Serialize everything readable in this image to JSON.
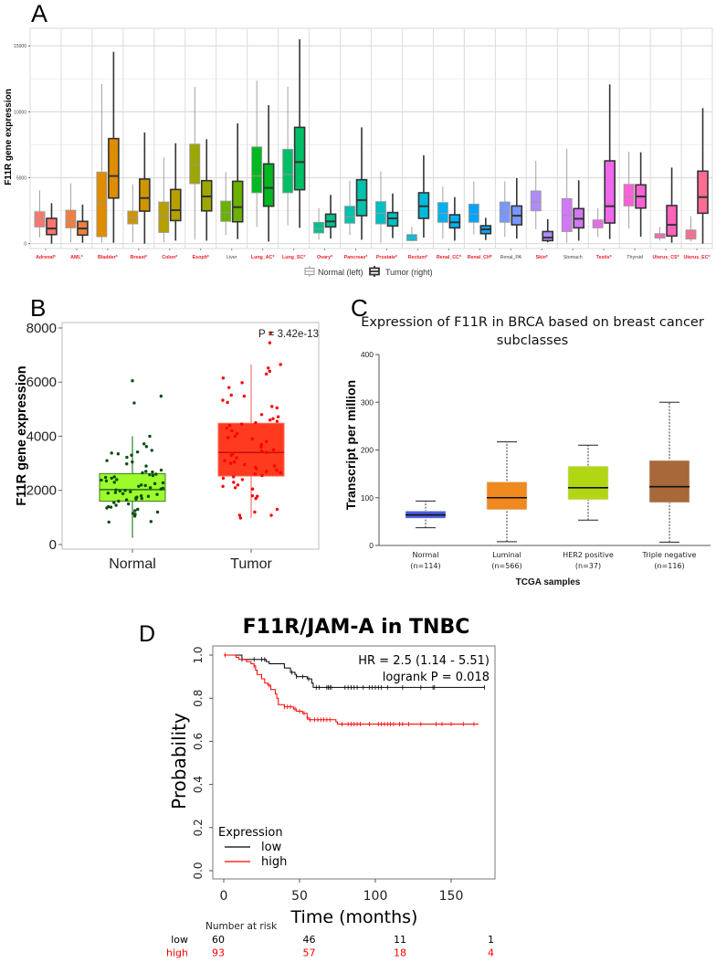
{
  "chart_data": [
    {
      "panel": "A",
      "type": "box",
      "ylabel": "F11R gene expression",
      "ylim": [
        0,
        15500
      ],
      "yticks": [
        "0",
        "5000",
        "10000",
        "15000"
      ],
      "grid": true,
      "legend": {
        "placement": "bottom",
        "normal": "Normal (left)",
        "tumor": "Tumor (right)"
      },
      "significant_color": "#e8202a",
      "tissues": [
        {
          "label": "Adrenal*",
          "sig": true,
          "color": "#F8766D",
          "normal": [
            0.46,
            1.27,
            1.85,
            2.42,
            4.04
          ],
          "tumor": [
            0,
            0.69,
            1.15,
            1.92,
            3.07
          ]
        },
        {
          "label": "AML*",
          "sig": true,
          "color": "#EE7F3E",
          "normal": [
            0.1,
            1.2,
            1.73,
            2.54,
            4.57
          ],
          "tumor": [
            0.07,
            0.65,
            1.15,
            1.69,
            2.96
          ]
        },
        {
          "label": "Bladder*",
          "sig": true,
          "color": "#DE8C00",
          "normal": [
            0.07,
            0.53,
            3.07,
            5.43,
            12.1
          ],
          "tumor": [
            0.07,
            3.46,
            5.13,
            7.97,
            14.55
          ]
        },
        {
          "label": "Breast*",
          "sig": true,
          "color": "#CD9600",
          "normal": [
            0.1,
            1.5,
            1.94,
            2.47,
            4.5
          ],
          "tumor": [
            0,
            2.47,
            3.46,
            4.9,
            8.43
          ]
        },
        {
          "label": "Colon*",
          "sig": true,
          "color": "#B79F00",
          "normal": [
            0.1,
            0.85,
            2.12,
            3.16,
            6.54
          ],
          "tumor": [
            0.23,
            1.75,
            2.54,
            4.11,
            7.62
          ]
        },
        {
          "label": "Esoph*",
          "sig": true,
          "color": "#9CA700",
          "normal": [
            0.3,
            4.55,
            6.0,
            7.55,
            11.9
          ],
          "tumor": [
            0.23,
            2.49,
            3.58,
            4.78,
            7.92
          ]
        },
        {
          "label": "Liver",
          "sig": false,
          "color": "#6BB100",
          "normal": [
            0.65,
            1.69,
            2.36,
            3.23,
            5.43
          ],
          "tumor": [
            0.35,
            1.66,
            2.77,
            4.73,
            9.12
          ]
        },
        {
          "label": "Lung_AC*",
          "sig": true,
          "color": "#00B81F",
          "normal": [
            1.27,
            3.86,
            5.13,
            7.34,
            12.36
          ],
          "tumor": [
            0.16,
            2.84,
            4.23,
            6.05,
            10.5
          ]
        },
        {
          "label": "Lung_SC*",
          "sig": true,
          "color": "#00BE67",
          "normal": [
            1.39,
            3.86,
            5.24,
            7.16,
            11.9
          ],
          "tumor": [
            1.2,
            4.09,
            6.19,
            8.82,
            15.5
          ]
        },
        {
          "label": "Ovary*",
          "sig": true,
          "color": "#00C08B",
          "normal": [
            0.3,
            0.81,
            1.15,
            1.62,
            2.7
          ],
          "tumor": [
            0.39,
            1.27,
            1.69,
            2.24,
            3.7
          ]
        },
        {
          "label": "Pancreas*",
          "sig": true,
          "color": "#00C1A9",
          "normal": [
            0.65,
            1.55,
            2.03,
            2.84,
            4.78
          ],
          "tumor": [
            0.3,
            2.12,
            3.3,
            4.85,
            8.82
          ]
        },
        {
          "label": "Prostate*",
          "sig": true,
          "color": "#00BFC4",
          "normal": [
            0.07,
            1.5,
            2.31,
            3.19,
            5.47
          ],
          "tumor": [
            0.42,
            1.34,
            1.92,
            2.36,
            3.81
          ]
        },
        {
          "label": "Rectum*",
          "sig": true,
          "color": "#00BADE",
          "normal": [
            0.18,
            0.23,
            0.46,
            0.69,
            1.27
          ],
          "tumor": [
            0.46,
            1.92,
            2.84,
            3.86,
            6.7
          ]
        },
        {
          "label": "Renal_CC*",
          "sig": true,
          "color": "#00B2F3",
          "normal": [
            0.39,
            1.62,
            2.31,
            3.12,
            4.34
          ],
          "tumor": [
            0.23,
            1.2,
            1.62,
            2.19,
            3.53
          ]
        },
        {
          "label": "Renal_CH*",
          "sig": true,
          "color": "#00A5FF",
          "normal": [
            0.69,
            1.62,
            2.26,
            3.0,
            4.73
          ],
          "tumor": [
            0.28,
            0.76,
            1.09,
            1.36,
            1.96
          ]
        },
        {
          "label": "Renal_PA",
          "sig": false,
          "color": "#7997FF",
          "normal": [
            0.51,
            1.62,
            2.4,
            3.16,
            4.73
          ],
          "tumor": [
            0.39,
            1.43,
            2.12,
            2.86,
            4.97
          ]
        },
        {
          "label": "Skin*",
          "sig": true,
          "color": "#B08BF8",
          "normal": [
            1.11,
            2.49,
            3.16,
            4.0,
            6.28
          ],
          "tumor": [
            0.1,
            0.23,
            0.46,
            0.92,
            1.85
          ]
        },
        {
          "label": "Stomach",
          "sig": false,
          "color": "#D277F5",
          "normal": [
            0.07,
            0.92,
            2.12,
            3.42,
            7.2
          ],
          "tumor": [
            0.23,
            1.2,
            1.89,
            2.66,
            4.8
          ]
        },
        {
          "label": "Testis*",
          "sig": true,
          "color": "#EF67EB",
          "normal": [
            0.51,
            1.2,
            1.5,
            1.8,
            2.7
          ],
          "tumor": [
            0.35,
            1.57,
            2.84,
            6.28,
            12.08
          ]
        },
        {
          "label": "Thyroid",
          "sig": false,
          "color": "#FB61D7",
          "normal": [
            1.15,
            2.86,
            3.53,
            4.5,
            6.97
          ],
          "tumor": [
            0.53,
            2.7,
            3.58,
            4.46,
            6.93
          ]
        },
        {
          "label": "Uterus_CS*",
          "sig": true,
          "color": "#FF62BC",
          "normal": [
            0.23,
            0.42,
            0.62,
            0.76,
            1.27
          ],
          "tumor": [
            0.07,
            0.58,
            1.43,
            2.89,
            5.77
          ]
        },
        {
          "label": "Uterus_EC*",
          "sig": true,
          "color": "#FF6C91",
          "normal": [
            0.18,
            0.35,
            0.62,
            1.04,
            2.08
          ],
          "tumor": [
            0,
            2.31,
            3.53,
            5.5,
            10.28
          ]
        }
      ],
      "value_units_note": "box stats [min,q1,median,q3,max] in thousands"
    },
    {
      "panel": "B",
      "type": "box",
      "ylabel": "F11R gene expression",
      "ylim": [
        0,
        8000
      ],
      "yticks": [
        "0",
        "2000",
        "4000",
        "6000",
        "8000"
      ],
      "annotation": "P = 3.42e-13",
      "groups": [
        {
          "label": "Normal",
          "fill": "#9cfb2a",
          "point_color": "#0b4d12",
          "line_color": "#3f8a3a",
          "stats": [
            250,
            1600,
            2030,
            2620,
            4000
          ],
          "points": [
            6050,
            5480,
            5230,
            4000,
            3720,
            3620,
            3480,
            3420,
            3380,
            3350,
            3300,
            3220,
            3100,
            3050,
            2980,
            2900,
            2750,
            2700,
            2680,
            2650,
            2600,
            2580,
            2550,
            2500,
            2480,
            2450,
            2400,
            2380,
            2350,
            2300,
            2280,
            2250,
            2200,
            2180,
            2150,
            2100,
            2080,
            2050,
            2020,
            2000,
            1980,
            1950,
            1920,
            1900,
            1880,
            1850,
            1800,
            1780,
            1750,
            1720,
            1700,
            1680,
            1650,
            1600,
            1550,
            1500,
            1450,
            1400,
            1380,
            1350,
            1300,
            1250,
            1200,
            1150,
            1120,
            1050,
            850,
            830
          ]
        },
        {
          "label": "Tumor",
          "fill": "#ff3a1e",
          "point_color": "#ff0000",
          "line_color": "#f08080",
          "stats": [
            980,
            2530,
            3400,
            4480,
            6650
          ],
          "points": [
            7820,
            7450,
            6650,
            6520,
            6400,
            6300,
            6150,
            5980,
            5800,
            5520,
            5480,
            5330,
            5250,
            5100,
            5050,
            4800,
            4720,
            4650,
            4600,
            4550,
            4500,
            4450,
            4400,
            4300,
            4200,
            4100,
            4000,
            3950,
            3900,
            3800,
            3700,
            3650,
            3600,
            3500,
            3450,
            3400,
            3350,
            3300,
            3200,
            3100,
            3050,
            3000,
            2950,
            2900,
            2850,
            2800,
            2750,
            2700,
            2650,
            2600,
            2550,
            2500,
            2450,
            2400,
            2300,
            2200,
            2150,
            2100,
            2050,
            1800,
            1780,
            1700,
            1300,
            1200,
            1080,
            1080,
            980
          ]
        }
      ]
    },
    {
      "panel": "C",
      "type": "box",
      "title": [
        "Expression of F11R in BRCA based on breast cancer",
        "subclasses"
      ],
      "xlabel": "TCGA samples",
      "ylabel": "Transcript per million",
      "ylim": [
        0,
        400
      ],
      "yticks": [
        "0",
        "100",
        "200",
        "300",
        "400"
      ],
      "groups": [
        {
          "label": "Normal",
          "n": "(n=114)",
          "color": "#4a5de0",
          "stats": [
            37,
            57,
            64,
            72,
            93
          ]
        },
        {
          "label": "Luminal",
          "n": "(n=566)",
          "color": "#f0891f",
          "stats": [
            8,
            75,
            100,
            133,
            217
          ]
        },
        {
          "label": "HER2 positive",
          "n": "(n=37)",
          "color": "#b1d613",
          "stats": [
            53,
            96,
            121,
            166,
            210
          ]
        },
        {
          "label": "Triple negative",
          "n": "(n=116)",
          "color": "#a8683a",
          "stats": [
            7,
            90,
            123,
            178,
            300
          ]
        }
      ]
    },
    {
      "panel": "D",
      "type": "line",
      "title": "F11R/JAM-A in TNBC",
      "xlabel": "Time (months)",
      "ylabel": "Probability",
      "xlim": [
        0,
        175
      ],
      "ylim": [
        0,
        1
      ],
      "xticks": [
        "0",
        "50",
        "100",
        "150"
      ],
      "yticks": [
        "0.0",
        "0.2",
        "0.4",
        "0.6",
        "0.8",
        "1.0"
      ],
      "stats": [
        "HR = 2.5 (1.14 - 5.51)",
        "logrank P = 0.018"
      ],
      "legend": {
        "title": "Expression",
        "placement": "bottom-left"
      },
      "series": [
        {
          "name": "low",
          "color": "#000000",
          "end": 172,
          "steps": [
            [
              0,
              1
            ],
            [
              12,
              0.98
            ],
            [
              28,
              0.97
            ],
            [
              30,
              0.96
            ],
            [
              40,
              0.94
            ],
            [
              44,
              0.92
            ],
            [
              47,
              0.91
            ],
            [
              48,
              0.9
            ],
            [
              55,
              0.89
            ],
            [
              58,
              0.87
            ],
            [
              59,
              0.85
            ]
          ],
          "censor": [
            12,
            20,
            25,
            27,
            45,
            48,
            52,
            56,
            61,
            63,
            68,
            69,
            70,
            71,
            80,
            82,
            84,
            86,
            88,
            92,
            96,
            98,
            100,
            102,
            104,
            108,
            118,
            130,
            138,
            139,
            172
          ]
        },
        {
          "name": "high",
          "color": "#ff0000",
          "end": 168,
          "steps": [
            [
              0,
              1
            ],
            [
              8,
              0.99
            ],
            [
              10,
              0.98
            ],
            [
              15,
              0.97
            ],
            [
              18,
              0.96
            ],
            [
              20,
              0.95
            ],
            [
              21,
              0.93
            ],
            [
              22,
              0.91
            ],
            [
              25,
              0.89
            ],
            [
              27,
              0.87
            ],
            [
              29,
              0.86
            ],
            [
              31,
              0.84
            ],
            [
              34,
              0.82
            ],
            [
              35,
              0.8
            ],
            [
              36,
              0.77
            ],
            [
              40,
              0.76
            ],
            [
              46,
              0.75
            ],
            [
              48,
              0.74
            ],
            [
              52,
              0.73
            ],
            [
              55,
              0.71
            ],
            [
              56,
              0.7
            ],
            [
              74,
              0.69
            ],
            [
              75,
              0.68
            ]
          ],
          "censor": [
            1,
            20,
            30,
            40,
            42,
            44,
            47,
            50,
            53,
            55,
            57,
            60,
            62,
            64,
            66,
            68,
            70,
            78,
            82,
            84,
            86,
            88,
            90,
            96,
            102,
            104,
            106,
            108,
            110,
            112,
            116,
            118,
            122,
            130,
            140,
            144,
            150,
            158,
            165
          ]
        }
      ],
      "risk_table": {
        "title": "Number at risk",
        "rows": [
          {
            "label": "low",
            "color": "#000000",
            "values": [
              "60",
              "46",
              "11",
              "1"
            ]
          },
          {
            "label": "high",
            "color": "#ff0000",
            "values": [
              "93",
              "57",
              "18",
              "4"
            ]
          }
        ]
      }
    }
  ],
  "panel_letters": {
    "a": "A",
    "b": "B",
    "c": "C",
    "d": "D"
  }
}
